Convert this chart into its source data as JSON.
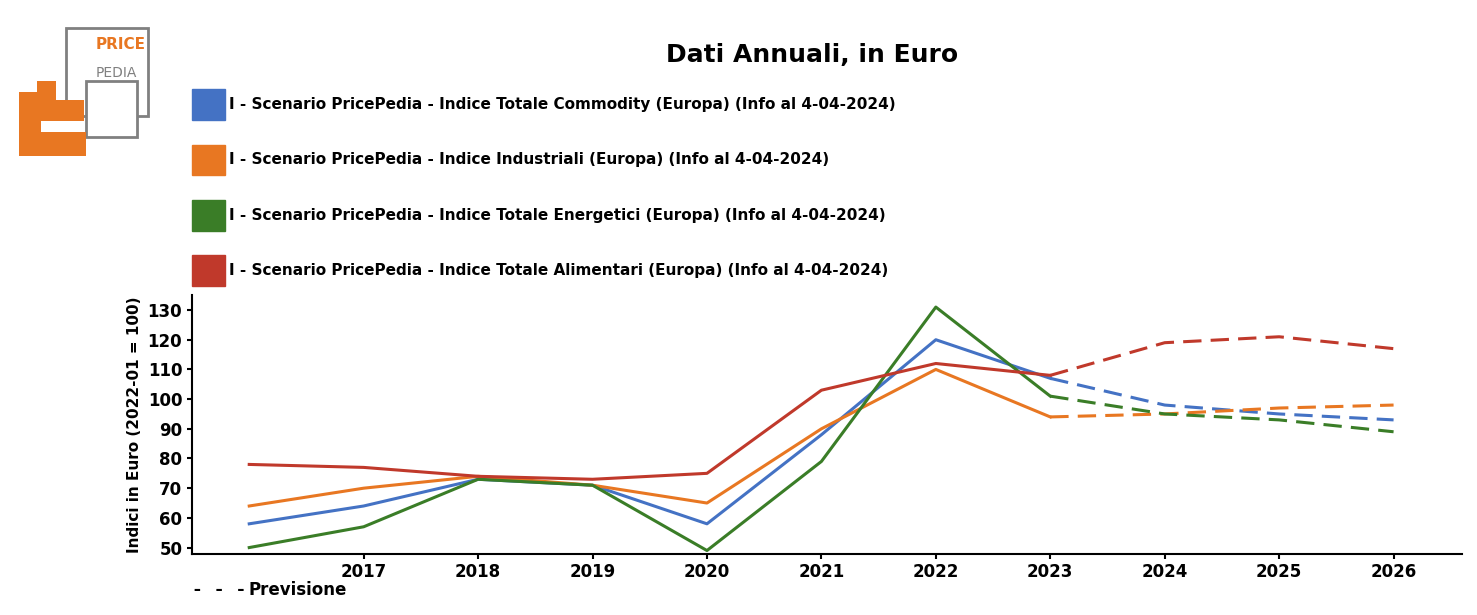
{
  "title": "Dati Annuali, in Euro",
  "ylabel": "Indici in Euro (2022-01 = 100)",
  "ylim": [
    48,
    135
  ],
  "yticks": [
    50,
    60,
    70,
    80,
    90,
    100,
    110,
    120,
    130
  ],
  "xticks": [
    2017,
    2018,
    2019,
    2020,
    2021,
    2022,
    2023,
    2024,
    2025,
    2026
  ],
  "xlim": [
    2015.5,
    2026.6
  ],
  "years_solid": [
    2016,
    2017,
    2018,
    2019,
    2020,
    2021,
    2022,
    2023
  ],
  "years_dashed": [
    2023,
    2024,
    2025,
    2026
  ],
  "series": [
    {
      "key": "blue",
      "label": "I - Scenario PricePedia - Indice Totale Commodity (Europa) (Info al 4-04-2024)",
      "color": "#4472C4",
      "solid": [
        58,
        64,
        73,
        71,
        58,
        88,
        120,
        107
      ],
      "dashed": [
        107,
        98,
        95,
        93
      ]
    },
    {
      "key": "orange",
      "label": "I - Scenario PricePedia - Indice Industriali (Europa) (Info al 4-04-2024)",
      "color": "#E87722",
      "solid": [
        64,
        70,
        74,
        71,
        65,
        90,
        110,
        94
      ],
      "dashed": [
        94,
        95,
        97,
        98
      ]
    },
    {
      "key": "green",
      "label": "I - Scenario PricePedia - Indice Totale Energetici (Europa) (Info al 4-04-2024)",
      "color": "#3A7D27",
      "solid": [
        50,
        57,
        73,
        71,
        49,
        79,
        131,
        101
      ],
      "dashed": [
        101,
        95,
        93,
        89
      ]
    },
    {
      "key": "red",
      "label": "I - Scenario PricePedia - Indice Totale Alimentari (Europa) (Info al 4-04-2024)",
      "color": "#C0392B",
      "solid": [
        78,
        77,
        74,
        73,
        75,
        103,
        112,
        108
      ],
      "dashed": [
        108,
        119,
        121,
        117
      ]
    }
  ],
  "legend_label": "Previsione",
  "background_color": "#FFFFFF",
  "title_fontsize": 18,
  "label_fontsize": 11,
  "tick_fontsize": 12,
  "legend_fontsize": 11,
  "logo_orange": "#E87722",
  "logo_gray": "#808080"
}
